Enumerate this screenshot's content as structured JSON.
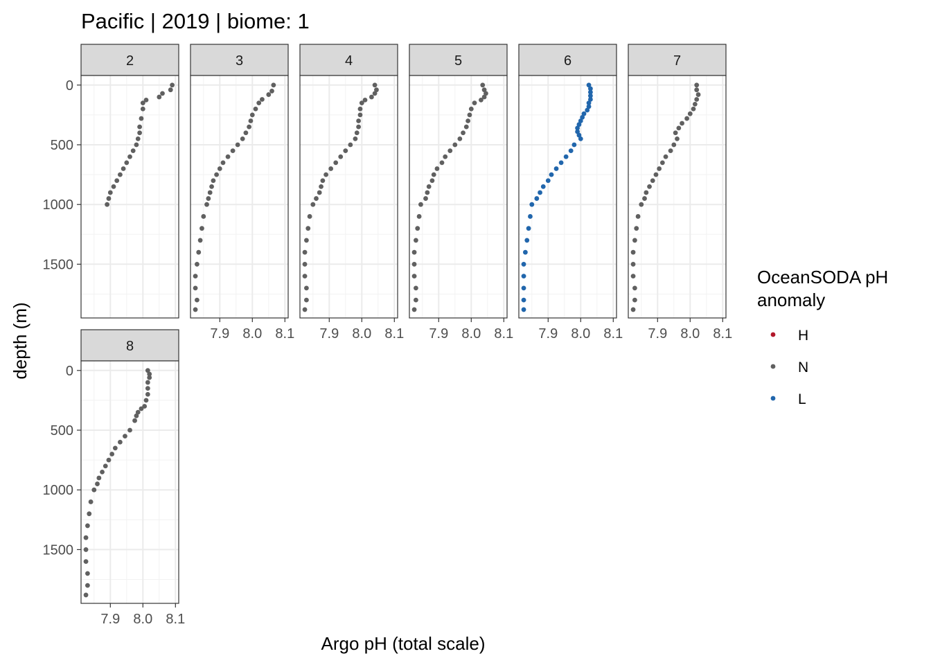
{
  "chart_data": {
    "type": "scatter",
    "title": "Pacific | 2019 | biome: 1",
    "xlabel": "Argo pH (total scale)",
    "ylabel": "depth (m)",
    "xlim": [
      7.81,
      8.11
    ],
    "ylim": [
      1950,
      -80
    ],
    "y_reversed": true,
    "grid": true,
    "x_ticks": [
      7.9,
      8.0,
      8.1
    ],
    "x_tick_labels": [
      "7.9",
      "8.0",
      "8.1"
    ],
    "y_ticks": [
      0,
      500,
      1000,
      1500
    ],
    "y_tick_labels": [
      "0",
      "500",
      "1000",
      "1500"
    ],
    "legend": {
      "title_lines": [
        "OceanSODA pH",
        "anomaly"
      ],
      "placement": "right",
      "entries": [
        {
          "label": "H",
          "color": "#b2182b"
        },
        {
          "label": "N",
          "color": "#606060"
        },
        {
          "label": "L",
          "color": "#2166ac"
        }
      ]
    },
    "panels": [
      {
        "label": "2",
        "category": "N",
        "profile": [
          [
            0,
            8.09
          ],
          [
            40,
            8.085
          ],
          [
            70,
            8.06
          ],
          [
            100,
            8.05
          ],
          [
            125,
            8.01
          ],
          [
            150,
            8.0
          ],
          [
            200,
            8.0
          ],
          [
            280,
            7.995
          ],
          [
            350,
            7.99
          ],
          [
            400,
            7.99
          ],
          [
            450,
            7.985
          ],
          [
            500,
            7.98
          ],
          [
            550,
            7.97
          ],
          [
            600,
            7.96
          ],
          [
            650,
            7.95
          ],
          [
            700,
            7.94
          ],
          [
            750,
            7.93
          ],
          [
            800,
            7.92
          ],
          [
            850,
            7.91
          ],
          [
            900,
            7.9
          ],
          [
            950,
            7.895
          ],
          [
            1000,
            7.89
          ]
        ]
      },
      {
        "label": "3",
        "category": "N",
        "profile": [
          [
            0,
            8.065
          ],
          [
            50,
            8.06
          ],
          [
            80,
            8.05
          ],
          [
            120,
            8.03
          ],
          [
            150,
            8.02
          ],
          [
            200,
            8.01
          ],
          [
            250,
            8.0
          ],
          [
            300,
            7.995
          ],
          [
            350,
            7.99
          ],
          [
            400,
            7.98
          ],
          [
            450,
            7.97
          ],
          [
            500,
            7.955
          ],
          [
            550,
            7.94
          ],
          [
            600,
            7.925
          ],
          [
            650,
            7.91
          ],
          [
            700,
            7.9
          ],
          [
            750,
            7.89
          ],
          [
            800,
            7.88
          ],
          [
            850,
            7.875
          ],
          [
            900,
            7.87
          ],
          [
            950,
            7.865
          ],
          [
            1000,
            7.86
          ],
          [
            1100,
            7.85
          ],
          [
            1200,
            7.845
          ],
          [
            1300,
            7.84
          ],
          [
            1400,
            7.835
          ],
          [
            1500,
            7.83
          ],
          [
            1600,
            7.825
          ],
          [
            1700,
            7.825
          ],
          [
            1800,
            7.83
          ],
          [
            1880,
            7.825
          ]
        ]
      },
      {
        "label": "4",
        "category": "N",
        "profile": [
          [
            0,
            8.04
          ],
          [
            40,
            8.045
          ],
          [
            70,
            8.04
          ],
          [
            100,
            8.03
          ],
          [
            125,
            8.01
          ],
          [
            150,
            8.0
          ],
          [
            200,
            7.995
          ],
          [
            250,
            7.995
          ],
          [
            300,
            7.99
          ],
          [
            350,
            7.99
          ],
          [
            400,
            7.985
          ],
          [
            450,
            7.98
          ],
          [
            500,
            7.965
          ],
          [
            550,
            7.95
          ],
          [
            600,
            7.935
          ],
          [
            650,
            7.92
          ],
          [
            700,
            7.905
          ],
          [
            750,
            7.89
          ],
          [
            800,
            7.88
          ],
          [
            850,
            7.875
          ],
          [
            900,
            7.87
          ],
          [
            950,
            7.86
          ],
          [
            1000,
            7.85
          ],
          [
            1100,
            7.84
          ],
          [
            1200,
            7.835
          ],
          [
            1300,
            7.83
          ],
          [
            1400,
            7.825
          ],
          [
            1500,
            7.825
          ],
          [
            1600,
            7.825
          ],
          [
            1700,
            7.83
          ],
          [
            1800,
            7.83
          ],
          [
            1880,
            7.825
          ]
        ]
      },
      {
        "label": "5",
        "category": "N",
        "profile": [
          [
            0,
            8.035
          ],
          [
            40,
            8.04
          ],
          [
            70,
            8.045
          ],
          [
            100,
            8.04
          ],
          [
            125,
            8.03
          ],
          [
            150,
            8.01
          ],
          [
            200,
            8.0
          ],
          [
            250,
            7.995
          ],
          [
            300,
            7.99
          ],
          [
            350,
            7.985
          ],
          [
            400,
            7.975
          ],
          [
            450,
            7.965
          ],
          [
            500,
            7.95
          ],
          [
            550,
            7.935
          ],
          [
            600,
            7.92
          ],
          [
            650,
            7.91
          ],
          [
            700,
            7.895
          ],
          [
            750,
            7.885
          ],
          [
            800,
            7.88
          ],
          [
            850,
            7.87
          ],
          [
            900,
            7.865
          ],
          [
            950,
            7.86
          ],
          [
            1000,
            7.845
          ],
          [
            1100,
            7.84
          ],
          [
            1200,
            7.835
          ],
          [
            1300,
            7.83
          ],
          [
            1400,
            7.825
          ],
          [
            1500,
            7.825
          ],
          [
            1600,
            7.825
          ],
          [
            1700,
            7.83
          ],
          [
            1800,
            7.83
          ],
          [
            1880,
            7.825
          ]
        ]
      },
      {
        "label": "6",
        "category": "L",
        "profile": [
          [
            0,
            8.025
          ],
          [
            30,
            8.03
          ],
          [
            60,
            8.03
          ],
          [
            90,
            8.03
          ],
          [
            120,
            8.03
          ],
          [
            150,
            8.025
          ],
          [
            180,
            8.025
          ],
          [
            210,
            8.02
          ],
          [
            240,
            8.01
          ],
          [
            270,
            8.005
          ],
          [
            300,
            8.0
          ],
          [
            330,
            7.995
          ],
          [
            360,
            7.99
          ],
          [
            390,
            7.99
          ],
          [
            420,
            7.995
          ],
          [
            450,
            8.0
          ],
          [
            500,
            7.98
          ],
          [
            550,
            7.97
          ],
          [
            600,
            7.955
          ],
          [
            650,
            7.94
          ],
          [
            700,
            7.925
          ],
          [
            750,
            7.91
          ],
          [
            800,
            7.9
          ],
          [
            850,
            7.885
          ],
          [
            900,
            7.875
          ],
          [
            950,
            7.865
          ],
          [
            1000,
            7.85
          ],
          [
            1100,
            7.845
          ],
          [
            1200,
            7.84
          ],
          [
            1300,
            7.835
          ],
          [
            1400,
            7.83
          ],
          [
            1500,
            7.825
          ],
          [
            1600,
            7.825
          ],
          [
            1700,
            7.825
          ],
          [
            1800,
            7.825
          ],
          [
            1880,
            7.825
          ]
        ]
      },
      {
        "label": "7",
        "category": "N",
        "profile": [
          [
            0,
            8.02
          ],
          [
            40,
            8.02
          ],
          [
            80,
            8.025
          ],
          [
            120,
            8.02
          ],
          [
            160,
            8.015
          ],
          [
            200,
            8.01
          ],
          [
            240,
            8.0
          ],
          [
            280,
            7.99
          ],
          [
            320,
            7.975
          ],
          [
            360,
            7.965
          ],
          [
            400,
            7.955
          ],
          [
            450,
            7.96
          ],
          [
            500,
            7.95
          ],
          [
            550,
            7.94
          ],
          [
            600,
            7.925
          ],
          [
            650,
            7.915
          ],
          [
            700,
            7.905
          ],
          [
            750,
            7.895
          ],
          [
            800,
            7.885
          ],
          [
            850,
            7.875
          ],
          [
            900,
            7.865
          ],
          [
            950,
            7.86
          ],
          [
            1000,
            7.85
          ],
          [
            1100,
            7.84
          ],
          [
            1200,
            7.835
          ],
          [
            1300,
            7.83
          ],
          [
            1400,
            7.825
          ],
          [
            1500,
            7.825
          ],
          [
            1600,
            7.825
          ],
          [
            1700,
            7.83
          ],
          [
            1800,
            7.83
          ],
          [
            1880,
            7.825
          ]
        ]
      },
      {
        "label": "8",
        "category": "N",
        "profile": [
          [
            0,
            8.015
          ],
          [
            30,
            8.02
          ],
          [
            60,
            8.02
          ],
          [
            100,
            8.015
          ],
          [
            150,
            8.015
          ],
          [
            200,
            8.015
          ],
          [
            250,
            8.01
          ],
          [
            300,
            8.005
          ],
          [
            320,
            7.995
          ],
          [
            350,
            7.985
          ],
          [
            380,
            7.98
          ],
          [
            420,
            7.975
          ],
          [
            500,
            7.96
          ],
          [
            550,
            7.945
          ],
          [
            600,
            7.93
          ],
          [
            650,
            7.915
          ],
          [
            700,
            7.905
          ],
          [
            750,
            7.895
          ],
          [
            800,
            7.885
          ],
          [
            850,
            7.875
          ],
          [
            900,
            7.865
          ],
          [
            950,
            7.86
          ],
          [
            1000,
            7.85
          ],
          [
            1100,
            7.84
          ],
          [
            1200,
            7.835
          ],
          [
            1300,
            7.83
          ],
          [
            1400,
            7.825
          ],
          [
            1500,
            7.825
          ],
          [
            1600,
            7.825
          ],
          [
            1700,
            7.83
          ],
          [
            1800,
            7.83
          ],
          [
            1880,
            7.825
          ]
        ]
      }
    ]
  }
}
